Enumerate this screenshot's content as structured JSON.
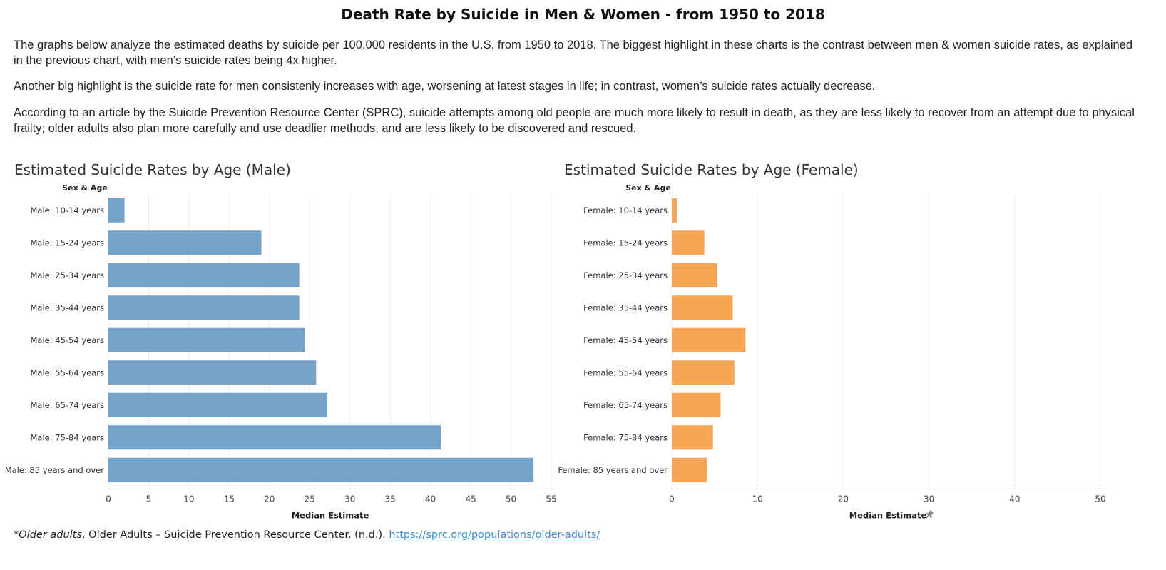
{
  "page": {
    "title": "Death Rate by Suicide in Men & Women - from 1950 to 2018",
    "paragraphs": [
      "The graphs below analyze the estimated deaths by suicide per 100,000 residents in the U.S. from 1950 to 2018. The biggest highlight in these charts is the contrast between men & women suicide rates,  as explained in the previous chart, with men’s suicide rates being 4x higher.",
      "Another big highlight is the suicide rate for men consistenly increases with age, worsening at latest stages in life; in contrast,  women’s suicide rates actually decrease.",
      "According to an article  by the Suicide Prevention Resource Center (SPRC), suicide attempts among old people are much more likely to result in death, as they are less likely to recover from an attempt due to physical frailty; older adults also plan more carefully and use deadlier methods, and are less likely to be discovered and rescued."
    ],
    "footnote": {
      "star": "*",
      "italic": "Older adults",
      "text": ". Older Adults – Suicide Prevention Resource Center. (n.d.). ",
      "link": "https://sprc.org/populations/older-adults/"
    },
    "pin_icon": "pin-icon"
  },
  "chart_data": [
    {
      "type": "bar",
      "orientation": "horizontal",
      "title": "Estimated Suicide Rates by Age (Male)",
      "row_header": "Sex & Age",
      "xlabel": "Median Estimate",
      "color": "#74a2c8",
      "xlim": [
        0,
        55
      ],
      "ticks": [
        0,
        5,
        10,
        15,
        20,
        25,
        30,
        35,
        40,
        45,
        50,
        55
      ],
      "categories": [
        "Male: 10-14 years",
        "Male: 15-24 years",
        "Male: 25-34 years",
        "Male: 35-44 years",
        "Male: 45-54 years",
        "Male: 55-64 years",
        "Male: 65-74 years",
        "Male: 75-84 years",
        "Male: 85 years and over"
      ],
      "values": [
        2.0,
        19.0,
        23.7,
        23.7,
        24.4,
        25.8,
        27.2,
        41.3,
        52.8
      ],
      "grid": true
    },
    {
      "type": "bar",
      "orientation": "horizontal",
      "title": "Estimated Suicide Rates by Age (Female)",
      "row_header": "Sex & Age",
      "xlabel": "Median Estimate",
      "color": "#f8a653",
      "xlim": [
        0,
        50
      ],
      "ticks": [
        0,
        10,
        20,
        30,
        40,
        50
      ],
      "categories": [
        "Female: 10-14 years",
        "Female: 15-24 years",
        "Female: 25-34 years",
        "Female: 35-44 years",
        "Female: 45-54 years",
        "Female: 55-64 years",
        "Female: 65-74 years",
        "Female: 75-84 years",
        "Female: 85 years and over"
      ],
      "values": [
        0.6,
        3.8,
        5.3,
        7.1,
        8.6,
        7.3,
        5.7,
        4.8,
        4.1
      ],
      "grid": true
    }
  ]
}
